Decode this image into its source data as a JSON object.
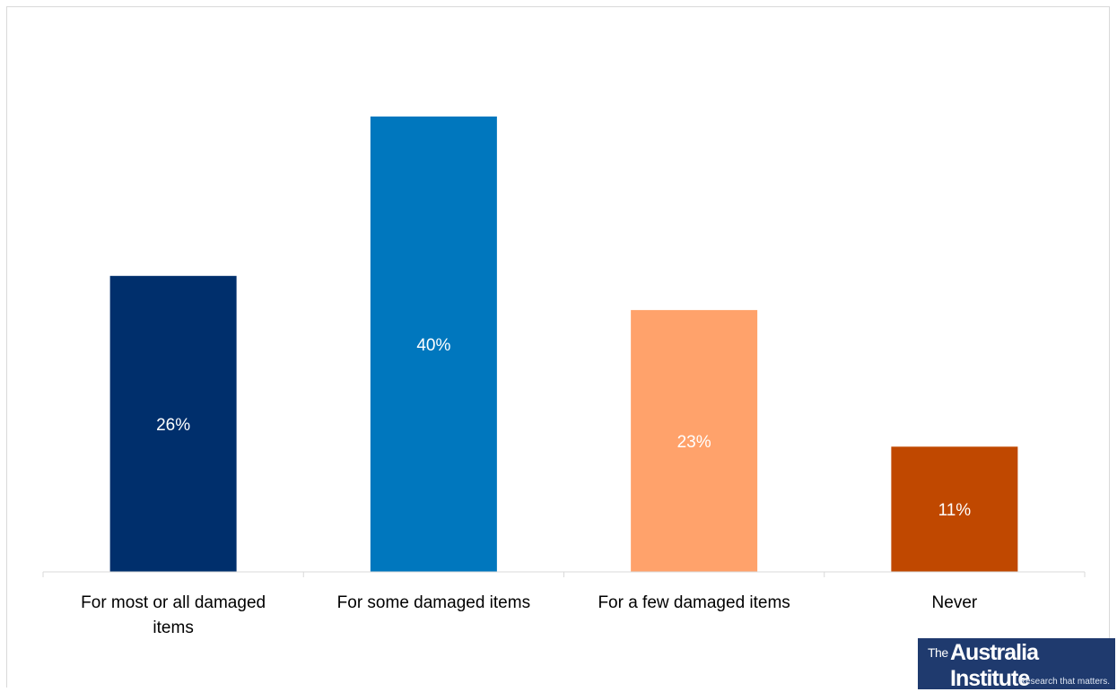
{
  "chart_data": {
    "type": "bar",
    "title": "",
    "xlabel": "",
    "ylabel": "",
    "categories": [
      [
        "For most or all damaged",
        "items"
      ],
      [
        "For some damaged items"
      ],
      [
        "For a few damaged items"
      ],
      [
        "Never"
      ]
    ],
    "values": [
      26,
      40,
      23,
      11
    ],
    "value_labels": [
      "26%",
      "40%",
      "23%",
      "11%"
    ],
    "colors": [
      "#002f6c",
      "#0077be",
      "#ffa26b",
      "#c04800"
    ],
    "ylim": [
      0,
      40
    ],
    "grid": false,
    "legend": "none"
  },
  "logo": {
    "prefix": "The",
    "name": "Australia Institute",
    "tagline": "Research that matters."
  }
}
